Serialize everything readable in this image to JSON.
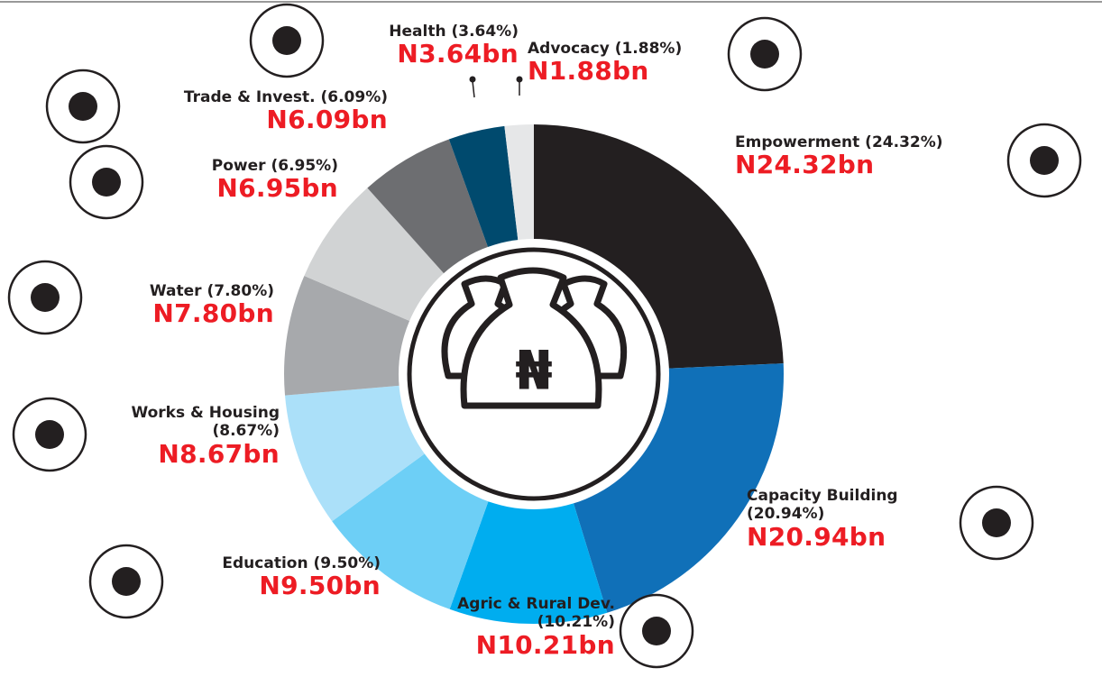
{
  "chart_data": {
    "type": "pie",
    "categories": [
      "Empowerment (24.32%)",
      "Capacity Building (20.94%)",
      "Agric & Rural Dev. (10.21%)",
      "Education (9.50%)",
      "Works & Housing (8.67%)",
      "Water (7.80%)",
      "Power (6.95%)",
      "Trade & Invest. (6.09%)",
      "Health (3.64%)",
      "Advocacy (1.88%)"
    ],
    "values": [
      24.32,
      20.94,
      10.21,
      9.5,
      8.67,
      7.8,
      6.95,
      6.09,
      3.64,
      1.88
    ],
    "value_labels": [
      "N24.32bn",
      "N20.94bn",
      "N10.21bn",
      "N9.50bn",
      "N8.67bn",
      "N7.80bn",
      "N6.95bn",
      "N6.09bn",
      "N3.64bn",
      "N1.88bn"
    ],
    "colors": [
      "#231f20",
      "#1070b8",
      "#00adef",
      "#6dcff6",
      "#abe0f9",
      "#a7a9ac",
      "#d1d3d4",
      "#6d6e71",
      "#004a6e",
      "#e6e7e8"
    ]
  }
}
